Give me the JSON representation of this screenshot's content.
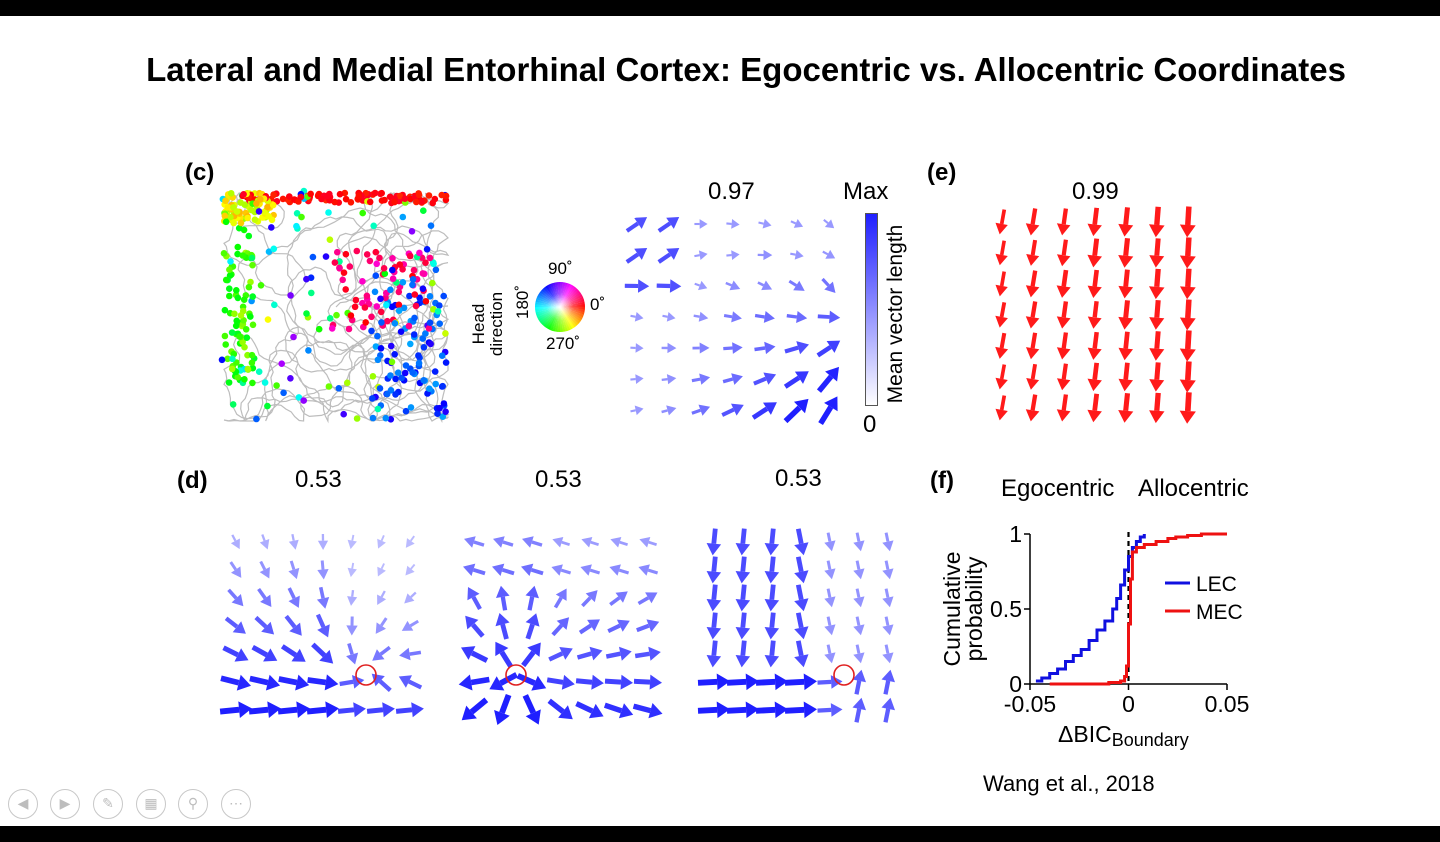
{
  "slide": {
    "title": "Lateral and Medial Entorhinal Cortex: Egocentric vs. Allocentric Coordinates",
    "citation": "Wang et al., 2018"
  },
  "panels": {
    "c": {
      "label": "(c)",
      "color_wheel": {
        "title": "Head direction",
        "deg90": "90˚",
        "deg0": "0˚",
        "deg180": "180˚",
        "deg270": "270˚"
      },
      "score": "0.97",
      "colorbar": {
        "max": "Max",
        "min": "0",
        "label": "Mean vector length",
        "color": "#1f1fff"
      }
    },
    "d": {
      "label": "(d)",
      "scores": [
        "0.53",
        "0.53",
        "0.53"
      ],
      "boundary_marker_color": "#e02020"
    },
    "e": {
      "label": "(e)",
      "score": "0.99",
      "arrow_color": "#ff1a1a"
    },
    "f": {
      "label": "(f)",
      "header_left": "Egocentric",
      "header_right": "Allocentric"
    }
  },
  "chart_data": {
    "type": "line",
    "xlabel": "ΔBIC",
    "xlabel_sub": "Boundary",
    "ylabel": "Cumulative probability",
    "xlim": [
      -0.05,
      0.05
    ],
    "ylim": [
      0,
      1
    ],
    "xticks": [
      "-0.05",
      "0",
      "0.05"
    ],
    "yticks": [
      "0",
      "0.5",
      "1"
    ],
    "legend": "right",
    "reference_line_x": 0,
    "series": [
      {
        "name": "LEC",
        "color": "#1010e0",
        "x": [
          -0.047,
          -0.044,
          -0.04,
          -0.036,
          -0.032,
          -0.028,
          -0.024,
          -0.02,
          -0.016,
          -0.012,
          -0.008,
          -0.006,
          -0.004,
          -0.002,
          0,
          0.002,
          0.004,
          0.006,
          0.008
        ],
        "y": [
          0.02,
          0.04,
          0.07,
          0.1,
          0.15,
          0.19,
          0.23,
          0.29,
          0.36,
          0.42,
          0.5,
          0.57,
          0.66,
          0.76,
          0.85,
          0.91,
          0.95,
          0.98,
          1.0
        ]
      },
      {
        "name": "MEC",
        "color": "#ee1111",
        "x": [
          -0.04,
          -0.01,
          -0.004,
          -0.002,
          -0.001,
          0,
          0.001,
          0.002,
          0.004,
          0.008,
          0.014,
          0.02,
          0.024,
          0.03,
          0.037,
          0.05
        ],
        "y": [
          0.0,
          0.01,
          0.02,
          0.05,
          0.12,
          0.4,
          0.7,
          0.88,
          0.91,
          0.93,
          0.95,
          0.97,
          0.98,
          0.99,
          1.0,
          1.0
        ]
      }
    ]
  }
}
